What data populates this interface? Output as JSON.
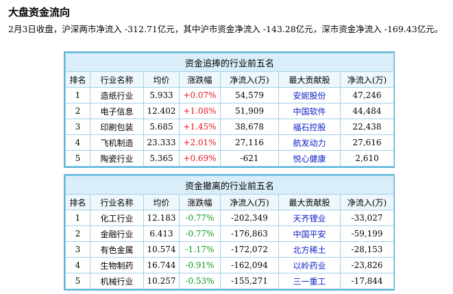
{
  "title": "大盘资金流向",
  "summary": "2月3日收盘，沪深两市净流入 -312.71亿元，其中沪市资金净流入 -143.28亿元，深市资金净流入 -169.43亿元。",
  "headers": [
    "排名",
    "行业名称",
    "均价",
    "涨跌幅",
    "净流入(万)",
    "最大贡献股",
    "净流入(万)"
  ],
  "inflow_table": {
    "caption": "资金追捧的行业前五名",
    "rows": [
      {
        "rank": "1",
        "industry": "造纸行业",
        "avg_price": "5.933",
        "change": "+0.07%",
        "net_inflow": "54,579",
        "top_stock": "安妮股份",
        "stock_inflow": "47,246"
      },
      {
        "rank": "2",
        "industry": "电子信息",
        "avg_price": "12.402",
        "change": "+1.08%",
        "net_inflow": "51,909",
        "top_stock": "中国软件",
        "stock_inflow": "44,484"
      },
      {
        "rank": "3",
        "industry": "印刷包装",
        "avg_price": "5.685",
        "change": "+1.45%",
        "net_inflow": "38,678",
        "top_stock": "福石控股",
        "stock_inflow": "22,438"
      },
      {
        "rank": "4",
        "industry": "飞机制造",
        "avg_price": "23.333",
        "change": "+2.01%",
        "net_inflow": "27,116",
        "top_stock": "航发动力",
        "stock_inflow": "27,616"
      },
      {
        "rank": "5",
        "industry": "陶瓷行业",
        "avg_price": "5.365",
        "change": "+0.69%",
        "net_inflow": "-621",
        "top_stock": "悦心健康",
        "stock_inflow": "2,610"
      }
    ]
  },
  "outflow_table": {
    "caption": "资金撤离的行业前五名",
    "rows": [
      {
        "rank": "1",
        "industry": "化工行业",
        "avg_price": "12.183",
        "change": "-0.77%",
        "net_inflow": "-202,349",
        "top_stock": "天齐锂业",
        "stock_inflow": "-33,027"
      },
      {
        "rank": "2",
        "industry": "金融行业",
        "avg_price": "6.413",
        "change": "-0.77%",
        "net_inflow": "-176,863",
        "top_stock": "中国平安",
        "stock_inflow": "-59,199"
      },
      {
        "rank": "3",
        "industry": "有色金属",
        "avg_price": "10.574",
        "change": "-1.17%",
        "net_inflow": "-172,072",
        "top_stock": "北方稀土",
        "stock_inflow": "-28,153"
      },
      {
        "rank": "4",
        "industry": "生物制药",
        "avg_price": "16.744",
        "change": "-0.91%",
        "net_inflow": "-162,094",
        "top_stock": "以岭药业",
        "stock_inflow": "-23,826"
      },
      {
        "rank": "5",
        "industry": "机械行业",
        "avg_price": "10.257",
        "change": "-0.53%",
        "net_inflow": "-155,271",
        "top_stock": "三一重工",
        "stock_inflow": "-17,844"
      }
    ]
  },
  "colors": {
    "up": "#e8141e",
    "down": "#0a9a1a",
    "stock_link": "#1020c8",
    "border": "#5cb4dc",
    "caption_bg": "#d9eef8"
  }
}
